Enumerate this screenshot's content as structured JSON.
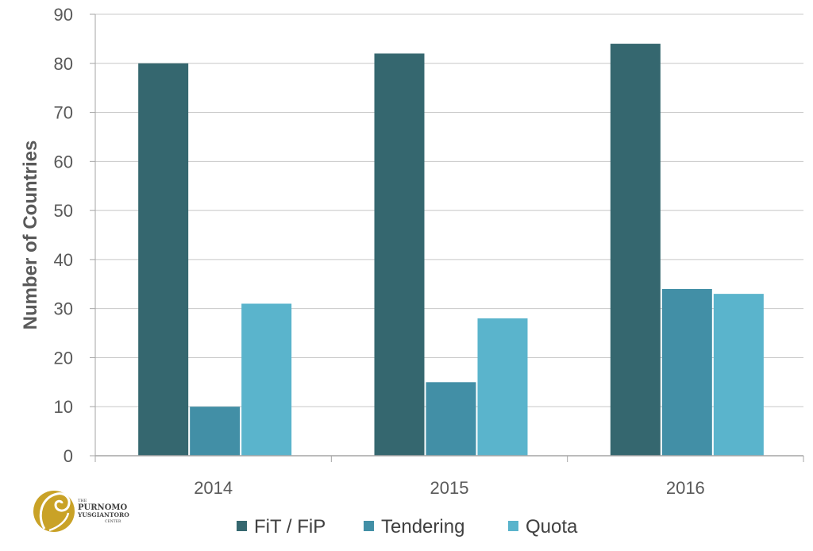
{
  "chart_data": {
    "type": "bar",
    "title": "",
    "xlabel": "",
    "ylabel": "Number of Countries",
    "ylim": [
      0,
      90
    ],
    "yticks": [
      0,
      10,
      20,
      30,
      40,
      50,
      60,
      70,
      80,
      90
    ],
    "categories": [
      "2014",
      "2015",
      "2016"
    ],
    "series": [
      {
        "name": "FiT / FiP",
        "color": "#35676F",
        "values": [
          80,
          82,
          84
        ]
      },
      {
        "name": "Tendering",
        "color": "#428FA6",
        "values": [
          10,
          15,
          34
        ]
      },
      {
        "name": "Quota",
        "color": "#5AB4CC",
        "values": [
          31,
          28,
          33
        ]
      }
    ],
    "grid": true,
    "legend_position": "bottom"
  },
  "logo": {
    "line1": "THE",
    "line2": "PURNOMO",
    "line3": "YUSGIANTORO",
    "line4": "CENTER",
    "color": "#C9A227"
  }
}
